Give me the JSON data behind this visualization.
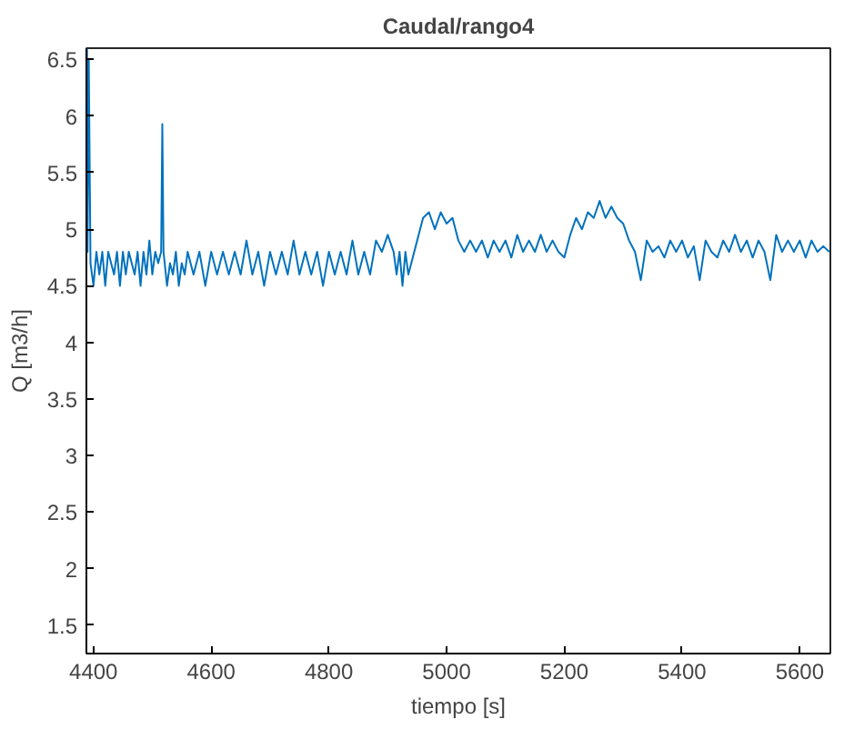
{
  "chart_data": {
    "type": "line",
    "title": "Caudal/rango4",
    "xlabel": "tiempo [s]",
    "ylabel": "Q [m3/h]",
    "xlim": [
      4388,
      5652
    ],
    "ylim": [
      1.25,
      6.6
    ],
    "xticks": [
      4400,
      4600,
      4800,
      5000,
      5200,
      5400,
      5600
    ],
    "yticks": [
      1.5,
      2,
      2.5,
      3,
      3.5,
      4,
      4.5,
      5,
      5.5,
      6,
      6.5
    ],
    "grid": false,
    "series": [
      {
        "color": "#0072bd",
        "x": [
          4389,
          4390,
          4392,
          4395,
          4400,
          4405,
          4410,
          4415,
          4420,
          4425,
          4430,
          4435,
          4440,
          4445,
          4450,
          4455,
          4460,
          4465,
          4470,
          4475,
          4480,
          4485,
          4490,
          4495,
          4500,
          4505,
          4510,
          4515,
          4517,
          4519,
          4525,
          4530,
          4535,
          4540,
          4545,
          4550,
          4555,
          4560,
          4570,
          4580,
          4590,
          4600,
          4610,
          4620,
          4630,
          4640,
          4650,
          4660,
          4670,
          4680,
          4690,
          4700,
          4710,
          4720,
          4730,
          4740,
          4750,
          4760,
          4770,
          4780,
          4790,
          4800,
          4810,
          4820,
          4830,
          4840,
          4850,
          4860,
          4870,
          4880,
          4890,
          4900,
          4910,
          4915,
          4920,
          4925,
          4930,
          4935,
          4940,
          4950,
          4960,
          4970,
          4980,
          4990,
          5000,
          5010,
          5020,
          5030,
          5040,
          5050,
          5060,
          5070,
          5080,
          5090,
          5100,
          5110,
          5120,
          5130,
          5140,
          5150,
          5160,
          5170,
          5180,
          5190,
          5200,
          5210,
          5220,
          5230,
          5240,
          5250,
          5260,
          5270,
          5280,
          5290,
          5300,
          5310,
          5320,
          5330,
          5340,
          5350,
          5360,
          5370,
          5380,
          5390,
          5400,
          5410,
          5420,
          5430,
          5440,
          5450,
          5460,
          5470,
          5480,
          5490,
          5500,
          5510,
          5520,
          5530,
          5540,
          5550,
          5560,
          5570,
          5580,
          5590,
          5600,
          5610,
          5620,
          5630,
          5640,
          5650
        ],
        "values": [
          6.6,
          4.8,
          6.5,
          4.7,
          4.5,
          4.8,
          4.6,
          4.8,
          4.5,
          4.8,
          4.7,
          4.6,
          4.8,
          4.5,
          4.8,
          4.6,
          4.8,
          4.7,
          4.6,
          4.8,
          4.5,
          4.8,
          4.6,
          4.9,
          4.6,
          4.8,
          4.7,
          4.8,
          5.93,
          4.8,
          4.5,
          4.7,
          4.6,
          4.8,
          4.5,
          4.7,
          4.6,
          4.8,
          4.6,
          4.8,
          4.5,
          4.8,
          4.6,
          4.8,
          4.6,
          4.8,
          4.6,
          4.9,
          4.6,
          4.8,
          4.5,
          4.8,
          4.6,
          4.8,
          4.6,
          4.9,
          4.6,
          4.8,
          4.6,
          4.8,
          4.5,
          4.8,
          4.6,
          4.8,
          4.6,
          4.9,
          4.6,
          4.8,
          4.6,
          4.9,
          4.8,
          4.95,
          4.8,
          4.6,
          4.8,
          4.5,
          4.8,
          4.6,
          4.7,
          4.9,
          5.1,
          5.15,
          5.0,
          5.15,
          5.05,
          5.1,
          4.9,
          4.8,
          4.9,
          4.8,
          4.9,
          4.75,
          4.9,
          4.8,
          4.9,
          4.75,
          4.95,
          4.8,
          4.9,
          4.8,
          4.95,
          4.8,
          4.9,
          4.8,
          4.75,
          4.95,
          5.1,
          5.0,
          5.15,
          5.1,
          5.25,
          5.1,
          5.2,
          5.1,
          5.05,
          4.9,
          4.8,
          4.55,
          4.9,
          4.8,
          4.85,
          4.75,
          4.9,
          4.8,
          4.9,
          4.75,
          4.85,
          4.55,
          4.9,
          4.8,
          4.75,
          4.9,
          4.8,
          4.95,
          4.8,
          4.9,
          4.75,
          4.9,
          4.8,
          4.55,
          4.95,
          4.8,
          4.9,
          4.8,
          4.9,
          4.75,
          4.9,
          4.8,
          4.85,
          4.8
        ]
      }
    ]
  }
}
